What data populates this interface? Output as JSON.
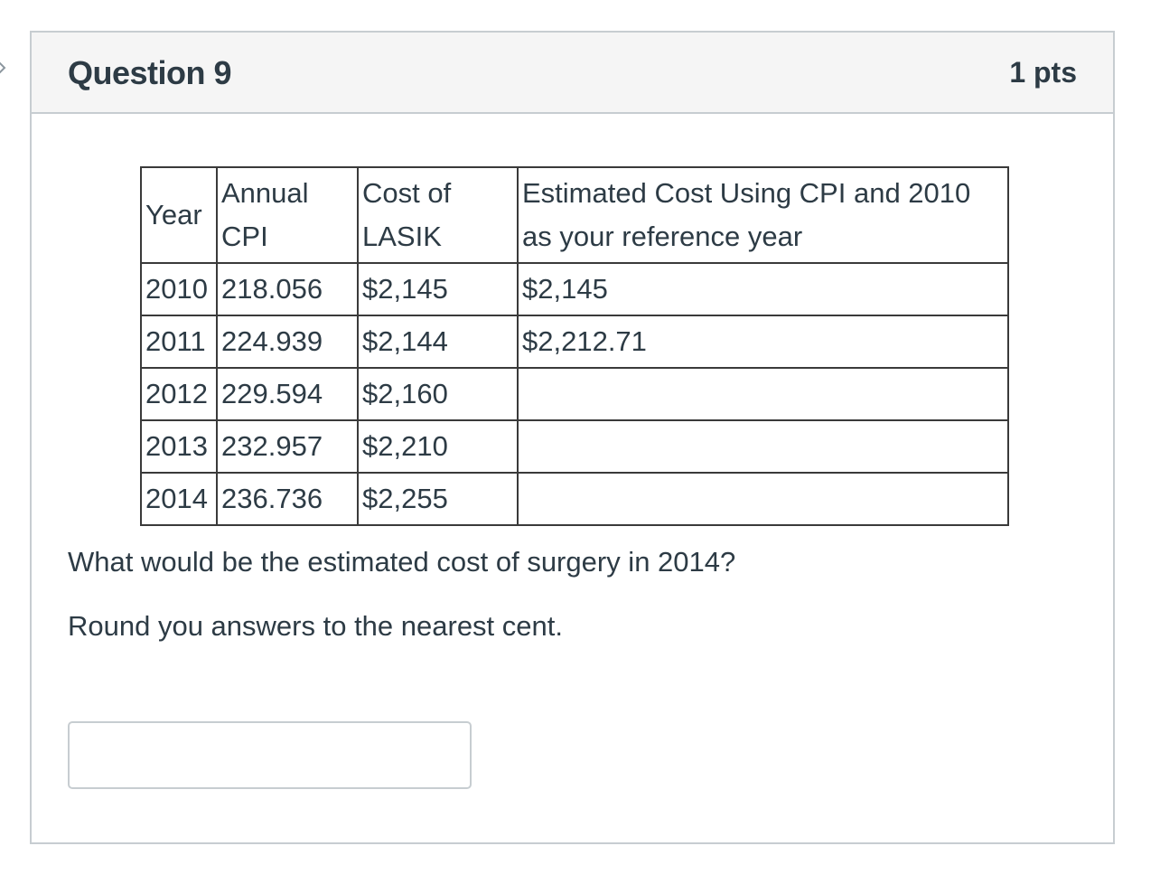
{
  "question": {
    "title": "Question 9",
    "points": "1 pts"
  },
  "table": {
    "headers": {
      "year": "Year",
      "cpi_line1": "Annual",
      "cpi_line2": "CPI",
      "cost_line1": "Cost of",
      "cost_line2": "LASIK",
      "est_line1": "Estimated Cost Using CPI and 2010",
      "est_line2": "as your reference year"
    },
    "rows": [
      {
        "year": "2010",
        "cpi": "218.056",
        "cost": "$2,145",
        "estimated": "$2,145"
      },
      {
        "year": "2011",
        "cpi": "224.939",
        "cost": "$2,144",
        "estimated": "$2,212.71"
      },
      {
        "year": "2012",
        "cpi": "229.594",
        "cost": "$2,160",
        "estimated": ""
      },
      {
        "year": "2013",
        "cpi": "232.957",
        "cost": "$2,210",
        "estimated": ""
      },
      {
        "year": "2014",
        "cpi": "236.736",
        "cost": "$2,255",
        "estimated": ""
      }
    ]
  },
  "prompt": "What would be the estimated cost of surgery in 2014?",
  "instruction": "Round you answers to the nearest cent.",
  "answer": {
    "value": ""
  },
  "colors": {
    "border": "#c7cdd1",
    "header_bg": "#f5f5f5",
    "text": "#2d3b45"
  }
}
